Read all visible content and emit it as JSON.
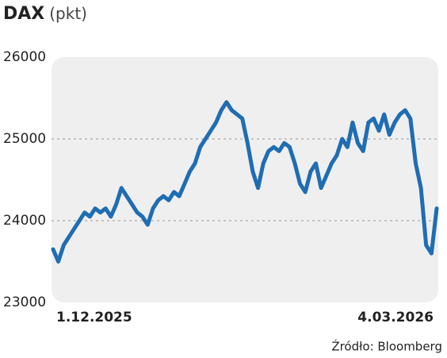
{
  "chart_data": {
    "type": "line",
    "title": "DAX",
    "subtitle": "(pkt)",
    "source": "Źródło: Bloomberg",
    "categories": [
      "1.12.2025",
      null,
      null,
      null,
      null,
      null,
      null,
      null,
      null,
      null,
      null,
      null,
      null,
      null,
      null,
      null,
      null,
      null,
      null,
      null,
      null,
      null,
      null,
      null,
      null,
      null,
      null,
      null,
      null,
      null,
      null,
      null,
      null,
      null,
      null,
      null,
      null,
      null,
      null,
      null,
      null,
      null,
      null,
      null,
      null,
      null,
      null,
      null,
      null,
      null,
      null,
      null,
      null,
      null,
      null,
      null,
      null,
      null,
      null,
      null,
      null,
      null,
      null,
      null,
      null,
      null,
      null,
      null,
      null,
      null,
      null,
      null,
      null,
      "4.03.2026"
    ],
    "series": [
      {
        "name": "DAX",
        "color": "#1f6db3",
        "values": [
          23650,
          23500,
          23700,
          23800,
          23900,
          24000,
          24100,
          24050,
          24150,
          24100,
          24150,
          24050,
          24200,
          24400,
          24300,
          24200,
          24100,
          24050,
          23950,
          24150,
          24250,
          24300,
          24250,
          24350,
          24300,
          24450,
          24600,
          24700,
          24900,
          25000,
          25100,
          25200,
          25350,
          25450,
          25350,
          25300,
          25250,
          24950,
          24600,
          24400,
          24700,
          24850,
          24900,
          24850,
          24950,
          24900,
          24700,
          24450,
          24350,
          24600,
          24700,
          24400,
          24550,
          24700,
          24800,
          25000,
          24900,
          25200,
          24950,
          24850,
          25200,
          25250,
          25100,
          25300,
          25050,
          25200,
          25300,
          25350,
          25250,
          24700,
          24400,
          23700,
          23600,
          24150
        ]
      }
    ],
    "ylim": [
      23000,
      26000
    ],
    "yticks": [
      23000,
      24000,
      25000,
      26000
    ],
    "grid": true
  }
}
